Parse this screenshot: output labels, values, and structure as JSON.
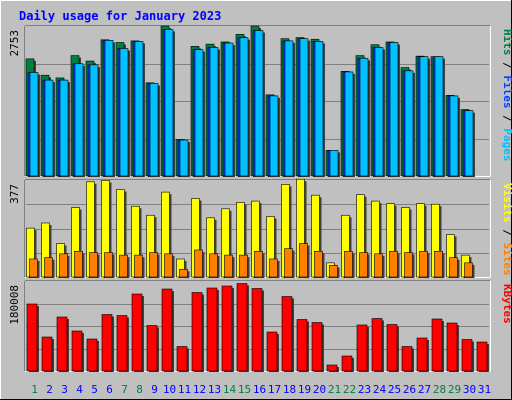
{
  "title": "Daily usage for January 2023",
  "colors": {
    "background": "#c0c0c0",
    "title": "#0000ff",
    "hits": "#008040",
    "files": "#0040ff",
    "pages": "#00c0ff",
    "visits": "#ffff00",
    "sites": "#ff8000",
    "kbytes": "#ff0000",
    "weekend_day": "#008040",
    "weekday_day": "#0000ff"
  },
  "chart_data": {
    "type": "bar",
    "categories": [
      "1",
      "2",
      "3",
      "4",
      "5",
      "6",
      "7",
      "8",
      "9",
      "10",
      "11",
      "12",
      "13",
      "14",
      "15",
      "16",
      "17",
      "18",
      "19",
      "20",
      "21",
      "22",
      "23",
      "24",
      "25",
      "26",
      "27",
      "28",
      "29",
      "30",
      "31"
    ],
    "weekend_days": [
      "1",
      "7",
      "8",
      "14",
      "15",
      "21",
      "22",
      "28",
      "29"
    ],
    "panels": [
      {
        "id": "requests",
        "scale_label": "2753",
        "ylim": [
          0,
          2753
        ],
        "legend": [
          "Pages",
          "Files",
          "Hits"
        ],
        "series": [
          {
            "name": "Hits",
            "values": [
              2150,
              1850,
              1800,
              2210,
              2110,
              2500,
              2450,
              2480,
              1710,
              2753,
              670,
              2380,
              2420,
              2460,
              2600,
              2753,
              1490,
              2520,
              2540,
              2510,
              470,
              1920,
              2210,
              2410,
              2460,
              1990,
              2200,
              2190,
              1480,
              1220,
              0
            ]
          },
          {
            "name": "Files",
            "values": [
              1900,
              1760,
              1760,
              2060,
              2040,
              2490,
              2340,
              2470,
              1700,
              2690,
              660,
              2320,
              2360,
              2440,
              2540,
              2670,
              1470,
              2480,
              2520,
              2470,
              470,
              1910,
              2160,
              2360,
              2450,
              1930,
              2190,
              2190,
              1470,
              1200,
              0
            ]
          },
          {
            "name": "Pages",
            "values": [
              1900,
              1760,
              1760,
              2060,
              2040,
              2490,
              2340,
              2470,
              1700,
              2690,
              660,
              2320,
              2360,
              2440,
              2540,
              2670,
              1470,
              2480,
              2520,
              2470,
              470,
              1910,
              2160,
              2360,
              2450,
              1930,
              2190,
              2190,
              1470,
              1200,
              0
            ]
          }
        ]
      },
      {
        "id": "visitors",
        "scale_label": "377",
        "ylim": [
          0,
          377
        ],
        "legend": [
          "Sites",
          "Visits"
        ],
        "series": [
          {
            "name": "Visits",
            "values": [
              190,
              210,
              130,
              270,
              370,
              375,
              340,
              275,
              240,
              330,
              70,
              305,
              230,
              265,
              290,
              295,
              235,
              360,
              380,
              318,
              55,
              240,
              320,
              295,
              285,
              270,
              285,
              283,
              165,
              85,
              0
            ]
          },
          {
            "name": "Sites",
            "values": [
              70,
              75,
              90,
              100,
              95,
              95,
              85,
              85,
              95,
              90,
              30,
              105,
              90,
              85,
              85,
              100,
              70,
              110,
              130,
              100,
              45,
              100,
              95,
              90,
              100,
              95,
              100,
              100,
              75,
              55,
              0
            ]
          }
        ]
      },
      {
        "id": "volume",
        "scale_label": "180008",
        "ylim": [
          0,
          180008
        ],
        "legend": [
          "KBytes"
        ],
        "series": [
          {
            "name": "KBytes",
            "values": [
              134000,
              68000,
              108000,
              80000,
              64000,
              113000,
              111000,
              154000,
              91000,
              164000,
              49000,
              157000,
              166000,
              170000,
              175000,
              165000,
              78000,
              149000,
              103000,
              97000,
              12000,
              30000,
              92000,
              105000,
              93000,
              49000,
              66000,
              104000,
              96000,
              63000,
              58000
            ]
          }
        ]
      }
    ]
  }
}
